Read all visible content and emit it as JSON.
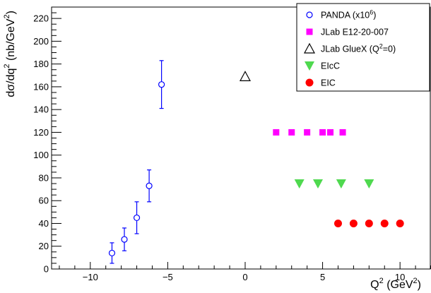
{
  "chart_data": {
    "type": "scatter",
    "xlabel": {
      "base": "Q",
      "sup": "2",
      "rest": " (GeV",
      "sup2": "2",
      "close": ")"
    },
    "ylabel": {
      "main": "dσ/dq",
      "sup": "2",
      "rest": " (nb/GeV",
      "sup2": "2",
      "close": ")"
    },
    "xlim": [
      -12.5,
      12.0
    ],
    "ylim": [
      0,
      230
    ],
    "x_ticks": [
      -10,
      -5,
      0,
      5,
      10
    ],
    "x_tick_labels": [
      "−10",
      "−5",
      "0",
      "5",
      "10"
    ],
    "y_ticks": [
      0,
      20,
      40,
      60,
      80,
      100,
      120,
      140,
      160,
      180,
      200,
      220
    ],
    "y_tick_labels": [
      "0",
      "20",
      "40",
      "60",
      "80",
      "100",
      "120",
      "140",
      "160",
      "180",
      "200",
      "220"
    ],
    "grid": false,
    "legend_position": "top-right",
    "series": [
      {
        "name": "PANDA (x10^6)",
        "legend": {
          "text": "PANDA (x10",
          "sup": "6",
          "tail": ")"
        },
        "marker": "open-circle",
        "color": "#0000ff",
        "points": [
          {
            "x": -8.6,
            "y": 14,
            "err": 9
          },
          {
            "x": -7.8,
            "y": 26,
            "err": 10
          },
          {
            "x": -7.0,
            "y": 45,
            "err": 14
          },
          {
            "x": -6.2,
            "y": 73,
            "err": 14
          },
          {
            "x": -5.4,
            "y": 162,
            "err": 21
          }
        ]
      },
      {
        "name": "JLab E12-20-007",
        "legend": {
          "text": "JLab E12-20-007",
          "sup": "",
          "tail": ""
        },
        "marker": "square",
        "color": "#ff00ff",
        "points": [
          {
            "x": 2.0,
            "y": 120
          },
          {
            "x": 3.0,
            "y": 120
          },
          {
            "x": 4.0,
            "y": 120
          },
          {
            "x": 5.0,
            "y": 120
          },
          {
            "x": 5.5,
            "y": 120
          },
          {
            "x": 6.3,
            "y": 120
          }
        ]
      },
      {
        "name": "JLab GlueX (Q^2=0)",
        "legend": {
          "text": "JLab GlueX (Q",
          "sup": "2",
          "tail": "=0)"
        },
        "marker": "open-triangle-up",
        "color": "#000000",
        "points": [
          {
            "x": 0.0,
            "y": 169
          }
        ]
      },
      {
        "name": "EIcC",
        "legend": {
          "text": "EIcC",
          "sup": "",
          "tail": ""
        },
        "marker": "triangle-down",
        "color": "#4fd94f",
        "points": [
          {
            "x": 3.5,
            "y": 75
          },
          {
            "x": 4.7,
            "y": 75
          },
          {
            "x": 6.2,
            "y": 75
          },
          {
            "x": 8.0,
            "y": 75
          }
        ]
      },
      {
        "name": "EIC",
        "legend": {
          "text": "EIC",
          "sup": "",
          "tail": ""
        },
        "marker": "filled-circle",
        "color": "#ff0000",
        "points": [
          {
            "x": 6.0,
            "y": 40
          },
          {
            "x": 7.0,
            "y": 40
          },
          {
            "x": 8.0,
            "y": 40
          },
          {
            "x": 9.0,
            "y": 40
          },
          {
            "x": 10.0,
            "y": 40
          }
        ]
      }
    ]
  }
}
